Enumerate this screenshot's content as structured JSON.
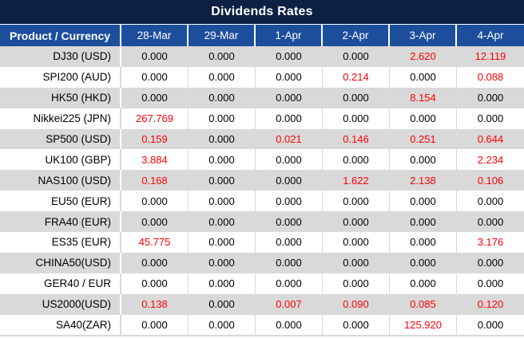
{
  "title": "Dividends Rates",
  "colors": {
    "title_bar_bg": "#0C2044",
    "header_bg": "#1C4E9C",
    "header_text": "#FFFFFF",
    "row_stripe_bg": "#D9D9D9",
    "row_bg": "#FFFFFF",
    "value_text": "#000000",
    "highlight_text": "#FF0000"
  },
  "chart_data": {
    "type": "table",
    "title": "Dividends Rates",
    "columns": [
      "Product / Currency",
      "28-Mar",
      "29-Mar",
      "1-Apr",
      "2-Apr",
      "3-Apr",
      "4-Apr"
    ],
    "rows": [
      {
        "label": "DJ30 (USD)",
        "values": [
          "0.000",
          "0.000",
          "0.000",
          "0.000",
          "2.620",
          "12.119"
        ],
        "red_flags": [
          false,
          false,
          false,
          false,
          true,
          true
        ]
      },
      {
        "label": "SPI200 (AUD)",
        "values": [
          "0.000",
          "0.000",
          "0.000",
          "0.214",
          "0.000",
          "0.088"
        ],
        "red_flags": [
          false,
          false,
          false,
          true,
          false,
          true
        ]
      },
      {
        "label": "HK50 (HKD)",
        "values": [
          "0.000",
          "0.000",
          "0.000",
          "0.000",
          "8.154",
          "0.000"
        ],
        "red_flags": [
          false,
          false,
          false,
          false,
          true,
          false
        ]
      },
      {
        "label": "Nikkei225 (JPN)",
        "values": [
          "267.769",
          "0.000",
          "0.000",
          "0.000",
          "0.000",
          "0.000"
        ],
        "red_flags": [
          true,
          false,
          false,
          false,
          false,
          false
        ]
      },
      {
        "label": "SP500 (USD)",
        "values": [
          "0.159",
          "0.000",
          "0.021",
          "0.146",
          "0.251",
          "0.644"
        ],
        "red_flags": [
          true,
          false,
          true,
          true,
          true,
          true
        ]
      },
      {
        "label": "UK100 (GBP)",
        "values": [
          "3.884",
          "0.000",
          "0.000",
          "0.000",
          "0.000",
          "2.234"
        ],
        "red_flags": [
          true,
          false,
          false,
          false,
          false,
          true
        ]
      },
      {
        "label": "NAS100 (USD)",
        "values": [
          "0.168",
          "0.000",
          "0.000",
          "1.622",
          "2.138",
          "0.106"
        ],
        "red_flags": [
          true,
          false,
          false,
          true,
          true,
          true
        ]
      },
      {
        "label": "EU50 (EUR)",
        "values": [
          "0.000",
          "0.000",
          "0.000",
          "0.000",
          "0.000",
          "0.000"
        ],
        "red_flags": [
          false,
          false,
          false,
          false,
          false,
          false
        ]
      },
      {
        "label": "FRA40 (EUR)",
        "values": [
          "0.000",
          "0.000",
          "0.000",
          "0.000",
          "0.000",
          "0.000"
        ],
        "red_flags": [
          false,
          false,
          false,
          false,
          false,
          false
        ]
      },
      {
        "label": "ES35 (EUR)",
        "values": [
          "45.775",
          "0.000",
          "0.000",
          "0.000",
          "0.000",
          "3.176"
        ],
        "red_flags": [
          true,
          false,
          false,
          false,
          false,
          true
        ]
      },
      {
        "label": "CHINA50(USD)",
        "values": [
          "0.000",
          "0.000",
          "0.000",
          "0.000",
          "0.000",
          "0.000"
        ],
        "red_flags": [
          false,
          false,
          false,
          false,
          false,
          false
        ]
      },
      {
        "label": "GER40 / EUR",
        "values": [
          "0.000",
          "0.000",
          "0.000",
          "0.000",
          "0.000",
          "0.000"
        ],
        "red_flags": [
          false,
          false,
          false,
          false,
          false,
          false
        ]
      },
      {
        "label": "US2000(USD)",
        "values": [
          "0.138",
          "0.000",
          "0.007",
          "0.090",
          "0.085",
          "0.120"
        ],
        "red_flags": [
          true,
          false,
          true,
          true,
          true,
          true
        ]
      },
      {
        "label": "SA40(ZAR)",
        "values": [
          "0.000",
          "0.000",
          "0.000",
          "0.000",
          "125.920",
          "0.000"
        ],
        "red_flags": [
          false,
          false,
          false,
          false,
          true,
          false
        ]
      }
    ]
  }
}
